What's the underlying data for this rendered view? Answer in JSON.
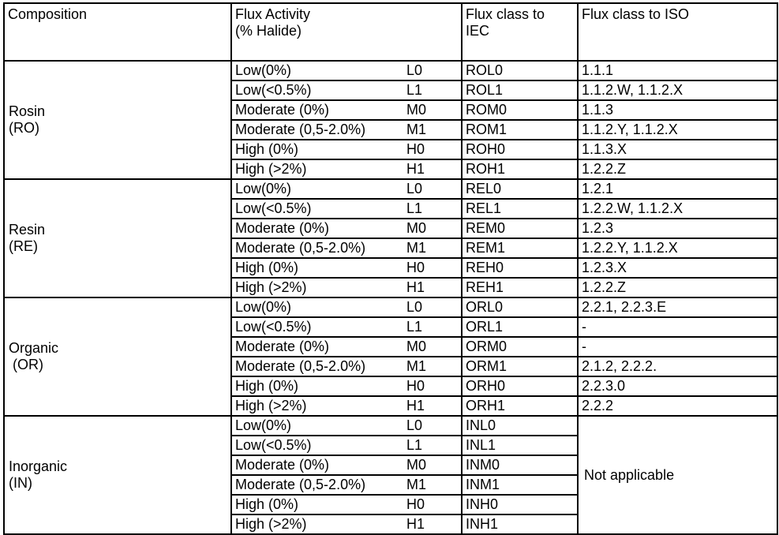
{
  "table": {
    "headers": {
      "composition": "Composition",
      "flux_activity": "Flux Activity\n(% Halide)",
      "flux_class_iec": "Flux class to\nIEC",
      "flux_class_iso": "Flux class to ISO"
    },
    "groups": [
      {
        "composition": "Rosin\n(RO)",
        "rows": [
          {
            "activity": "Low(0%)",
            "code": "L0",
            "iec": "ROL0",
            "iso": "1.1.1"
          },
          {
            "activity": "Low(<0.5%)",
            "code": "L1",
            "iec": "ROL1",
            "iso": "1.1.2.W, 1.1.2.X"
          },
          {
            "activity": "Moderate (0%)",
            "code": "M0",
            "iec": "ROM0",
            "iso": "1.1.3"
          },
          {
            "activity": "Moderate (0,5-2.0%)",
            "code": "M1",
            "iec": "ROM1",
            "iso": "1.1.2.Y, 1.1.2.X"
          },
          {
            "activity": "High (0%)",
            "code": "H0",
            "iec": "ROH0",
            "iso": "1.1.3.X"
          },
          {
            "activity": "High (>2%)",
            "code": "H1",
            "iec": "ROH1",
            "iso": "1.2.2.Z"
          }
        ]
      },
      {
        "composition": "Resin\n(RE)",
        "rows": [
          {
            "activity": "Low(0%)",
            "code": "L0",
            "iec": "REL0",
            "iso": "1.2.1"
          },
          {
            "activity": "Low(<0.5%)",
            "code": "L1",
            "iec": "REL1",
            "iso": "1.2.2.W, 1.1.2.X"
          },
          {
            "activity": "Moderate (0%)",
            "code": "M0",
            "iec": "REM0",
            "iso": "1.2.3"
          },
          {
            "activity": "Moderate (0,5-2.0%)",
            "code": "M1",
            "iec": "REM1",
            "iso": "1.2.2.Y, 1.1.2.X"
          },
          {
            "activity": "High (0%)",
            "code": "H0",
            "iec": "REH0",
            "iso": "1.2.3.X"
          },
          {
            "activity": "High (>2%)",
            "code": "H1",
            "iec": "REH1",
            "iso": "1.2.2.Z"
          }
        ]
      },
      {
        "composition": "Organic\n (OR)",
        "rows": [
          {
            "activity": "Low(0%)",
            "code": "L0",
            "iec": "ORL0",
            "iso": "2.2.1, 2.2.3.E"
          },
          {
            "activity": "Low(<0.5%)",
            "code": "L1",
            "iec": "ORL1",
            "iso": "-"
          },
          {
            "activity": "Moderate (0%)",
            "code": "M0",
            "iec": "ORM0",
            "iso": "-"
          },
          {
            "activity": "Moderate (0,5-2.0%)",
            "code": "M1",
            "iec": "ORM1",
            "iso": "2.1.2, 2.2.2."
          },
          {
            "activity": "High (0%)",
            "code": "H0",
            "iec": "ORH0",
            "iso": "2.2.3.0"
          },
          {
            "activity": "High (>2%)",
            "code": "H1",
            "iec": "ORH1",
            "iso": "2.2.2"
          }
        ]
      },
      {
        "composition": "Inorganic\n(IN)",
        "iso_merged": "Not applicable",
        "rows": [
          {
            "activity": "Low(0%)",
            "code": "L0",
            "iec": "INL0"
          },
          {
            "activity": "Low(<0.5%)",
            "code": "L1",
            "iec": "INL1"
          },
          {
            "activity": "Moderate (0%)",
            "code": "M0",
            "iec": "INM0"
          },
          {
            "activity": "Moderate (0,5-2.0%)",
            "code": "M1",
            "iec": "INM1"
          },
          {
            "activity": "High (0%)",
            "code": "H0",
            "iec": "INH0"
          },
          {
            "activity": "High (>2%)",
            "code": "H1",
            "iec": "INH1"
          }
        ]
      }
    ]
  }
}
